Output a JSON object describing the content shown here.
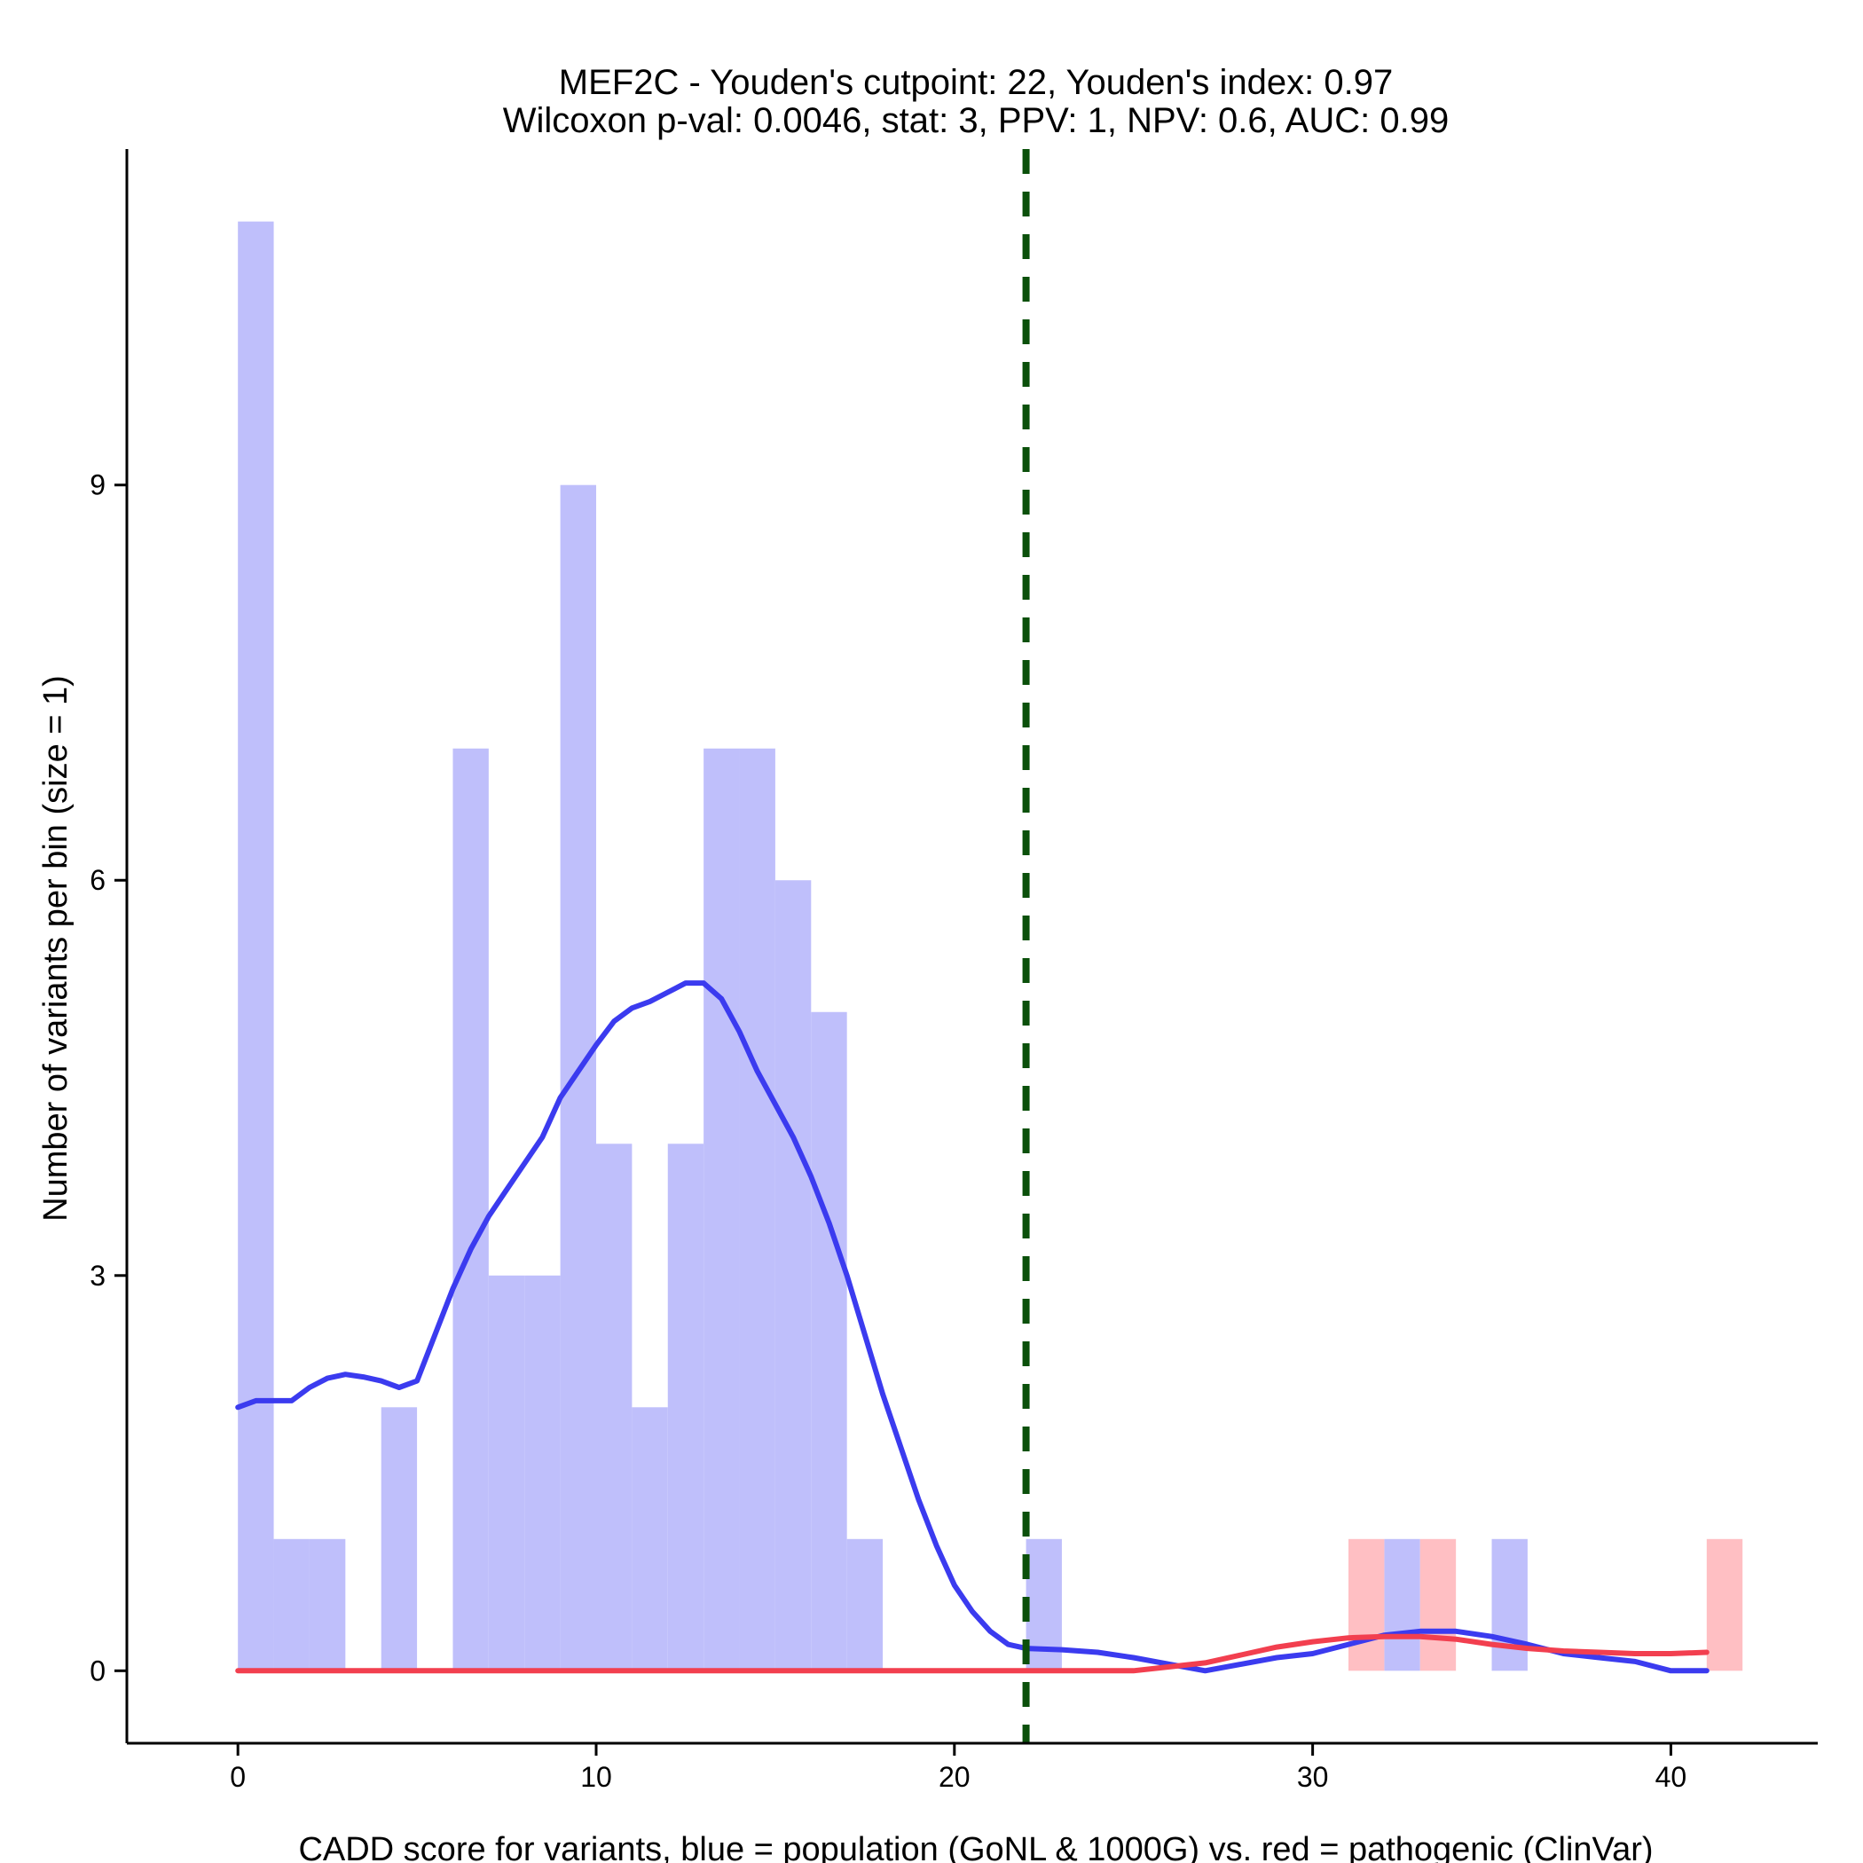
{
  "chart_data": {
    "type": "bar",
    "title_line1": "MEF2C - Youden's cutpoint: 22, Youden's index: 0.97",
    "title_line2": "Wilcoxon p-val: 0.0046, stat: 3, PPV: 1, NPV: 0.6, AUC: 0.99",
    "xlabel": "CADD score for variants, blue = population (GoNL & 1000G) vs. red = pathogenic (ClinVar)",
    "ylabel": "Number of variants per bin (size = 1)",
    "xlim": [
      -3.1,
      44.1
    ],
    "ylim": [
      -0.55,
      11.55
    ],
    "x_ticks": [
      0,
      10,
      20,
      30,
      40
    ],
    "y_ticks": [
      0,
      3,
      6,
      9
    ],
    "bin_size": 1,
    "cutpoint": 22,
    "colors": {
      "population_bar": "#bfbffb",
      "pathogenic_bar": "#ffbfc3",
      "population_line": "#3b3bef",
      "pathogenic_line": "#f23f4f",
      "cutpoint_line": "#0b500b"
    },
    "series": [
      {
        "group": "population",
        "bins": [
          {
            "x": 0,
            "count": 11
          },
          {
            "x": 1,
            "count": 1
          },
          {
            "x": 2,
            "count": 1
          },
          {
            "x": 4,
            "count": 2
          },
          {
            "x": 6,
            "count": 7
          },
          {
            "x": 7,
            "count": 3
          },
          {
            "x": 8,
            "count": 3
          },
          {
            "x": 9,
            "count": 9
          },
          {
            "x": 10,
            "count": 4
          },
          {
            "x": 11,
            "count": 2
          },
          {
            "x": 12,
            "count": 4
          },
          {
            "x": 13,
            "count": 7
          },
          {
            "x": 14,
            "count": 7
          },
          {
            "x": 15,
            "count": 6
          },
          {
            "x": 16,
            "count": 5
          },
          {
            "x": 17,
            "count": 1
          },
          {
            "x": 22,
            "count": 1
          },
          {
            "x": 32,
            "count": 1
          },
          {
            "x": 35,
            "count": 1
          }
        ],
        "density_curve": [
          [
            0,
            2.0
          ],
          [
            0.5,
            2.05
          ],
          [
            1,
            2.05
          ],
          [
            1.5,
            2.05
          ],
          [
            2,
            2.15
          ],
          [
            2.5,
            2.22
          ],
          [
            3,
            2.25
          ],
          [
            3.5,
            2.23
          ],
          [
            4,
            2.2
          ],
          [
            4.5,
            2.15
          ],
          [
            5,
            2.2
          ],
          [
            5.5,
            2.55
          ],
          [
            6,
            2.9
          ],
          [
            6.5,
            3.2
          ],
          [
            7,
            3.45
          ],
          [
            7.5,
            3.65
          ],
          [
            8,
            3.85
          ],
          [
            8.5,
            4.05
          ],
          [
            9,
            4.35
          ],
          [
            9.5,
            4.55
          ],
          [
            10,
            4.75
          ],
          [
            10.5,
            4.93
          ],
          [
            11,
            5.03
          ],
          [
            11.5,
            5.08
          ],
          [
            12,
            5.15
          ],
          [
            12.5,
            5.22
          ],
          [
            13,
            5.22
          ],
          [
            13.5,
            5.1
          ],
          [
            14,
            4.85
          ],
          [
            14.5,
            4.55
          ],
          [
            15,
            4.3
          ],
          [
            15.5,
            4.05
          ],
          [
            16,
            3.75
          ],
          [
            16.5,
            3.4
          ],
          [
            17,
            3.0
          ],
          [
            17.5,
            2.55
          ],
          [
            18,
            2.1
          ],
          [
            18.5,
            1.7
          ],
          [
            19,
            1.3
          ],
          [
            19.5,
            0.95
          ],
          [
            20,
            0.65
          ],
          [
            20.5,
            0.45
          ],
          [
            21,
            0.3
          ],
          [
            21.5,
            0.2
          ],
          [
            22,
            0.17
          ],
          [
            23,
            0.16
          ],
          [
            24,
            0.14
          ],
          [
            25,
            0.1
          ],
          [
            26,
            0.05
          ],
          [
            27,
            0.0
          ],
          [
            28,
            0.05
          ],
          [
            29,
            0.1
          ],
          [
            30,
            0.13
          ],
          [
            31,
            0.2
          ],
          [
            32,
            0.27
          ],
          [
            33,
            0.3
          ],
          [
            34,
            0.3
          ],
          [
            35,
            0.26
          ],
          [
            36,
            0.2
          ],
          [
            37,
            0.13
          ],
          [
            38,
            0.1
          ],
          [
            39,
            0.07
          ],
          [
            40,
            0.0
          ],
          [
            41,
            0.0
          ]
        ]
      },
      {
        "group": "pathogenic",
        "bins": [
          {
            "x": 31,
            "count": 1
          },
          {
            "x": 33,
            "count": 1
          },
          {
            "x": 41,
            "count": 1
          }
        ],
        "density_curve": [
          [
            0,
            0.0
          ],
          [
            5,
            0.0
          ],
          [
            10,
            0.0
          ],
          [
            15,
            0.0
          ],
          [
            20,
            0.0
          ],
          [
            22,
            0.0
          ],
          [
            24,
            0.0
          ],
          [
            25,
            0.0
          ],
          [
            26,
            0.03
          ],
          [
            27,
            0.06
          ],
          [
            28,
            0.12
          ],
          [
            29,
            0.18
          ],
          [
            30,
            0.22
          ],
          [
            31,
            0.25
          ],
          [
            32,
            0.26
          ],
          [
            33,
            0.26
          ],
          [
            34,
            0.24
          ],
          [
            35,
            0.2
          ],
          [
            36,
            0.17
          ],
          [
            37,
            0.15
          ],
          [
            38,
            0.14
          ],
          [
            39,
            0.13
          ],
          [
            40,
            0.13
          ],
          [
            41,
            0.14
          ]
        ]
      }
    ]
  }
}
